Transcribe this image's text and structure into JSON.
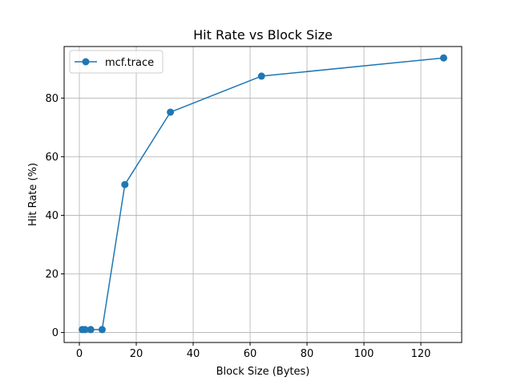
{
  "chart_data": {
    "type": "line",
    "title": "Hit Rate vs Block Size",
    "xlabel": "Block Size (Bytes)",
    "ylabel": "Hit Rate (%)",
    "xlim": [
      -5.35,
      134.35
    ],
    "ylim": [
      -3.4,
      97.6
    ],
    "xticks": [
      0,
      20,
      40,
      60,
      80,
      100,
      120
    ],
    "yticks": [
      0,
      20,
      40,
      60,
      80
    ],
    "grid": true,
    "legend_position": "top-left",
    "series": [
      {
        "name": "mcf.trace",
        "color": "#1f77b4",
        "marker": "circle",
        "x": [
          1,
          2,
          4,
          8,
          16,
          32,
          64,
          128
        ],
        "y": [
          1.0,
          1.0,
          1.0,
          1.0,
          50.5,
          75.2,
          87.5,
          93.7
        ]
      }
    ]
  }
}
